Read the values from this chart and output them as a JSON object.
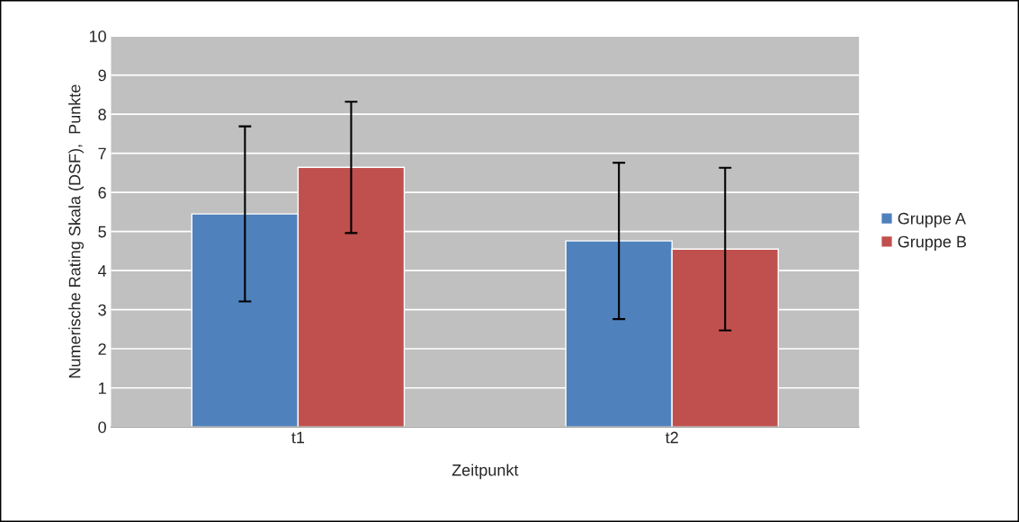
{
  "chart_data": {
    "type": "bar",
    "xlabel": "Zeitpunkt",
    "ylabel": "Numerische Rating Skala (DSF),  Punkte",
    "categories": [
      "t1",
      "t2"
    ],
    "series": [
      {
        "name": "Gruppe A",
        "color": "#4f81bd",
        "values": [
          5.45,
          4.76
        ],
        "errors": [
          2.24,
          2.0
        ]
      },
      {
        "name": "Gruppe B",
        "color": "#c0504d",
        "values": [
          6.64,
          4.55
        ],
        "errors": [
          1.68,
          2.08
        ]
      }
    ],
    "ylim": [
      0,
      10
    ],
    "yticks": [
      0,
      1,
      2,
      3,
      4,
      5,
      6,
      7,
      8,
      9,
      10
    ],
    "grid": "y",
    "legend": "right"
  }
}
